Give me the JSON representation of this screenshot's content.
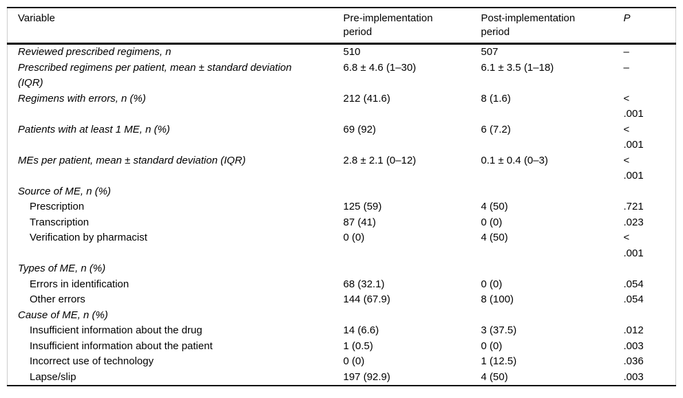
{
  "table": {
    "columns": [
      "Variable",
      "Pre-implementation period",
      "Post-implementation period",
      "P"
    ],
    "rows": [
      {
        "style": "variable",
        "label": "Reviewed prescribed regimens, n",
        "pre": "510",
        "post": "507",
        "p": "–"
      },
      {
        "style": "variable",
        "label": "Prescribed regimens per patient, mean ± standard deviation (IQR)",
        "pre": "6.8 ± 4.6 (1–30)",
        "post": "6.1 ± 3.5 (1–18)",
        "p": "–"
      },
      {
        "style": "variable",
        "label": "Regimens with errors, n (%)",
        "pre": "212 (41.6)",
        "post": "8 (1.6)",
        "p": "< .001"
      },
      {
        "style": "variable",
        "label": "Patients with at least 1 ME, n (%)",
        "pre": "69 (92)",
        "post": "6 (7.2)",
        "p": "< .001"
      },
      {
        "style": "variable",
        "label": "MEs per patient, mean ± standard deviation (IQR)",
        "pre": "2.8 ± 2.1 (0–12)",
        "post": "0.1 ± 0.4 (0–3)",
        "p": "< .001"
      },
      {
        "style": "section",
        "label": "Source of ME, n (%)",
        "pre": "",
        "post": "",
        "p": ""
      },
      {
        "style": "sub",
        "label": "Prescription",
        "pre": "125 (59)",
        "post": "4 (50)",
        "p": ".721"
      },
      {
        "style": "sub",
        "label": "Transcription",
        "pre": "87 (41)",
        "post": "0 (0)",
        "p": ".023"
      },
      {
        "style": "sub",
        "label": "Verification by pharmacist",
        "pre": "0 (0)",
        "post": "4 (50)",
        "p": "< .001"
      },
      {
        "style": "section",
        "label": "Types of ME, n (%)",
        "pre": "",
        "post": "",
        "p": ""
      },
      {
        "style": "sub",
        "label": "Errors in identification",
        "pre": "68 (32.1)",
        "post": "0 (0)",
        "p": ".054"
      },
      {
        "style": "sub",
        "label": "Other errors",
        "pre": "144 (67.9)",
        "post": "8 (100)",
        "p": ".054"
      },
      {
        "style": "section",
        "label": "Cause of ME, n (%)",
        "pre": "",
        "post": "",
        "p": ""
      },
      {
        "style": "sub",
        "label": "Insufficient information about the drug",
        "pre": "14 (6.6)",
        "post": "3 (37.5)",
        "p": ".012"
      },
      {
        "style": "sub",
        "label": "Insufficient information about the patient",
        "pre": "1 (0.5)",
        "post": "0 (0)",
        "p": ".003"
      },
      {
        "style": "sub",
        "label": "Incorrect use of technology",
        "pre": "0 (0)",
        "post": "1 (12.5)",
        "p": ".036"
      },
      {
        "style": "sub",
        "label": "Lapse/slip",
        "pre": "197 (92.9)",
        "post": "4 (50)",
        "p": ".003"
      }
    ]
  }
}
